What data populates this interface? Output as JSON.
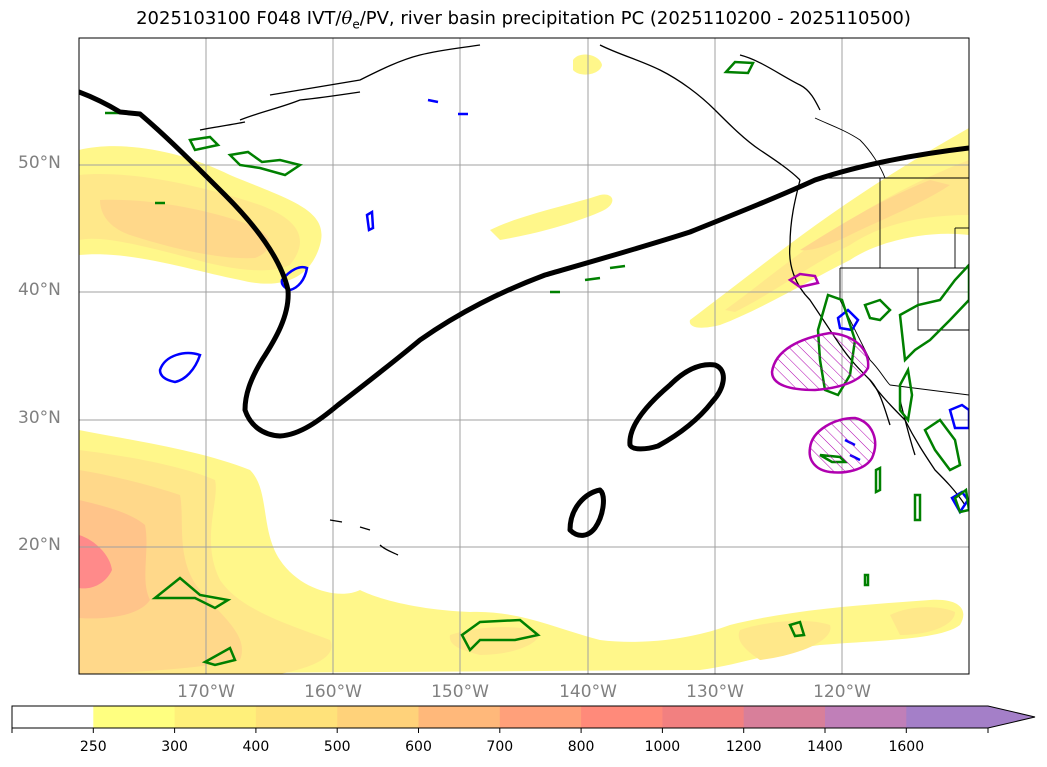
{
  "title": {
    "prefix": "2025103100 F048 IVT/",
    "theta_symbol": "θ",
    "theta_sub": "e",
    "suffix": "/PV, river basin precipitation PC (2025110200 - 2025110500)"
  },
  "axes": {
    "lat_labels": [
      "50°N",
      "40°N",
      "30°N",
      "20°N"
    ],
    "lon_labels": [
      "170°W",
      "160°W",
      "150°W",
      "140°W",
      "130°W",
      "120°W"
    ]
  },
  "colorbar": {
    "tick_labels": [
      "250",
      "300",
      "400",
      "500",
      "600",
      "700",
      "800",
      "1000",
      "1200",
      "1400",
      "1600"
    ],
    "colors": [
      "#ffff80",
      "#fff07a",
      "#ffe27a",
      "#ffd27a",
      "#ffb87a",
      "#ffa07a",
      "#ff8a7a",
      "#f28080",
      "#d87f9a",
      "#c07fb8",
      "#a47fc8"
    ],
    "extend": "max"
  },
  "map": {
    "lon_range": [
      -180,
      -110
    ],
    "lat_range": [
      10,
      60
    ],
    "ivt_fill_colors": [
      "#fff78a",
      "#ffe88a",
      "#ffd88a",
      "#ffc48a",
      "#ff8a8a"
    ],
    "contour_colors": {
      "black_line": "#000000",
      "green": "#008000",
      "blue": "#0000ff",
      "magenta": "#b000b0"
    },
    "gridlines": true
  }
}
